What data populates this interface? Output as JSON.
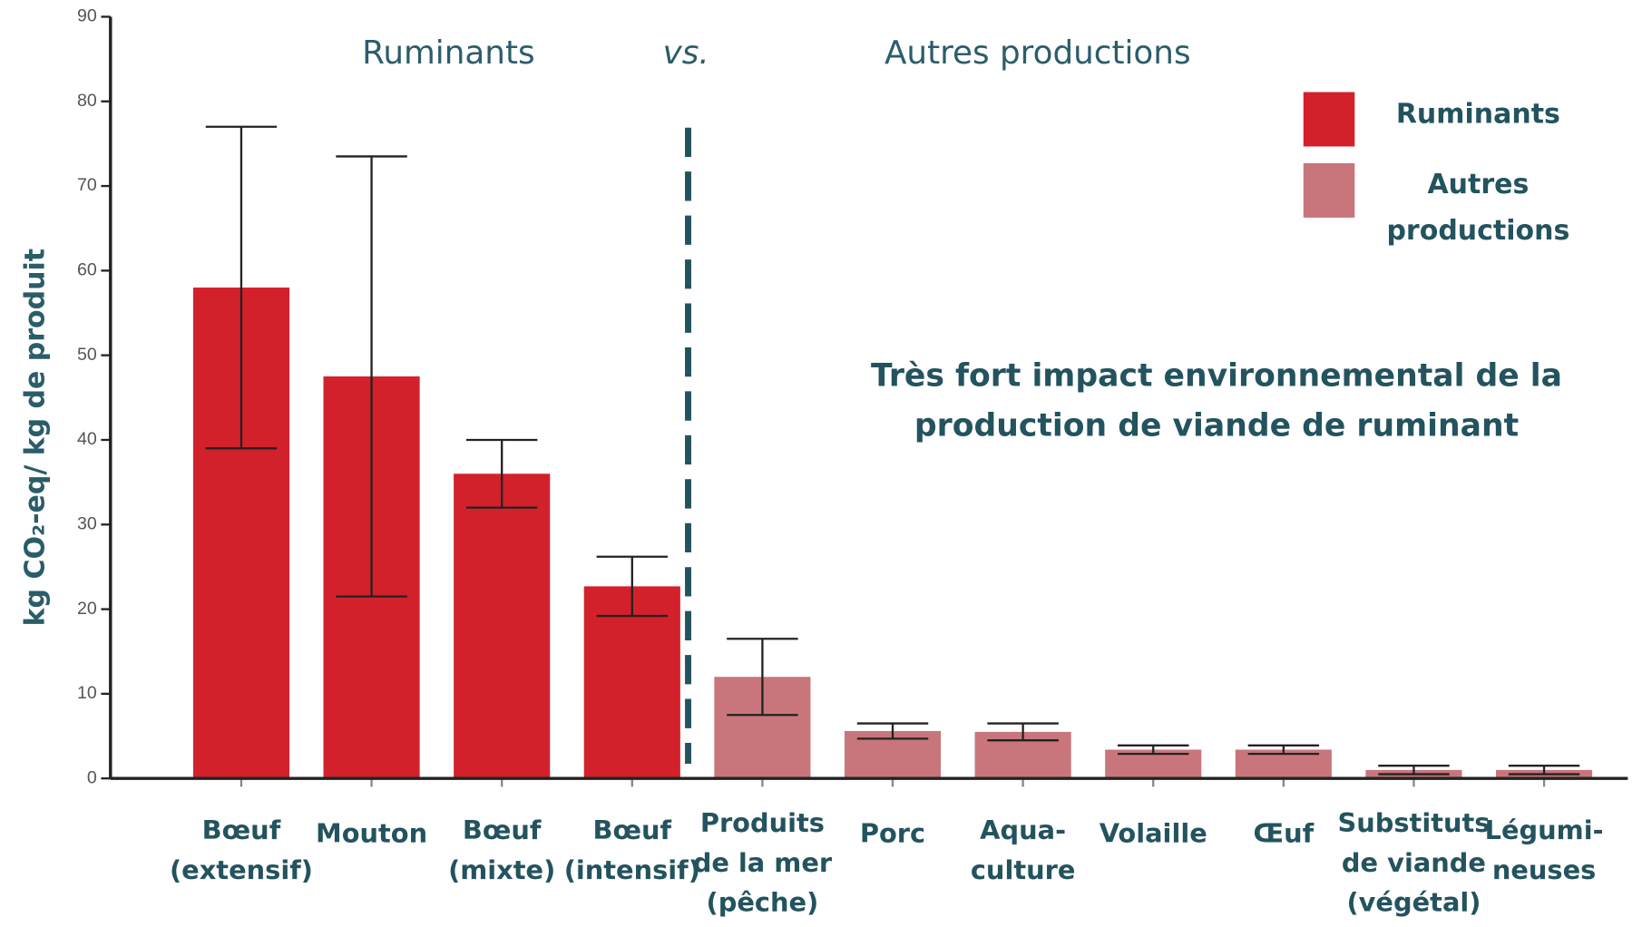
{
  "chart_data": {
    "type": "bar",
    "header": [
      "Ruminants",
      "vs.",
      "Autres productions"
    ],
    "ylabel": "kg CO₂-eq/ kg de produit",
    "annotation": "Très fort impact environnemental de la\nproduction de viande de ruminant",
    "categories": [
      "Bœuf\n(extensif)",
      "Mouton",
      "Bœuf\n(mixte)",
      "Bœuf\n(intensif)",
      "Produits\nde la mer\n(pêche)",
      "Porc",
      "Aqua-\nculture",
      "Volaille",
      "Œuf",
      "Substituts\nde viande\n(végétal)",
      "Légumi-\nneuses"
    ],
    "series": [
      {
        "name": "Ruminants",
        "color": "#d3212b",
        "values": [
          58,
          47.5,
          36,
          22.7,
          null,
          null,
          null,
          null,
          null,
          null,
          null
        ],
        "errors": [
          19,
          26,
          4,
          3.5,
          null,
          null,
          null,
          null,
          null,
          null,
          null
        ]
      },
      {
        "name": "Autres\nproductions",
        "color": "#c8767c",
        "values": [
          null,
          null,
          null,
          null,
          12,
          5.6,
          5.5,
          3.4,
          3.4,
          1,
          1
        ],
        "errors": [
          null,
          null,
          null,
          null,
          4.5,
          0.9,
          1,
          0.5,
          0.5,
          0.5,
          0.5
        ]
      }
    ],
    "ylim": [
      0,
      90
    ],
    "yticks": [
      0,
      10,
      20,
      30,
      40,
      50,
      60,
      70,
      80,
      90
    ],
    "grid": false,
    "legend": "top-right"
  }
}
